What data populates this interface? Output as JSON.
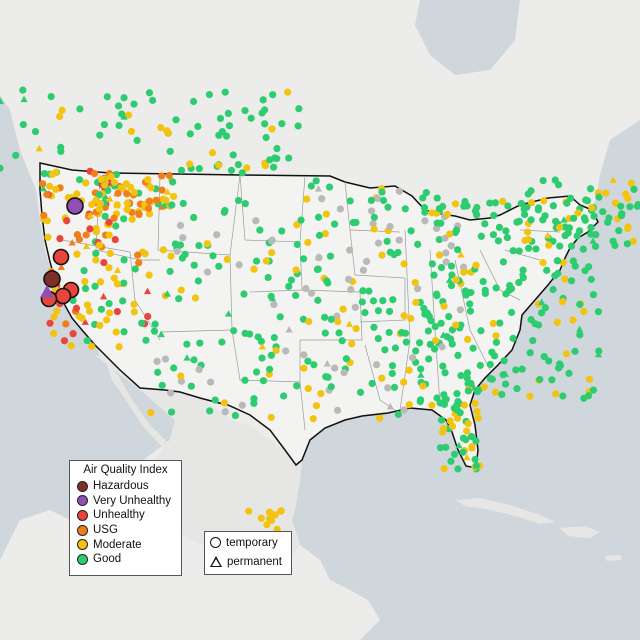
{
  "legend_aqi": {
    "title": "Air Quality Index",
    "categories": [
      {
        "label": "Hazardous",
        "color": "#7e2f2a"
      },
      {
        "label": "Very Unhealthy",
        "color": "#8f4fb3"
      },
      {
        "label": "Unhealthy",
        "color": "#e8453c"
      },
      {
        "label": "USG",
        "color": "#ef7f1a"
      },
      {
        "label": "Moderate",
        "color": "#f2c30f"
      },
      {
        "label": "Good",
        "color": "#2ecc71"
      }
    ]
  },
  "legend_type": {
    "temporary_label": "temporary",
    "permanent_label": "permanent"
  },
  "colors": {
    "ocean": "#cfd6dc",
    "land": "#ededeb",
    "us_land": "#f2f2f0",
    "border": "#111111",
    "state_lines": "#9a9a9a",
    "unknown_sensor": "#b9b9b9"
  }
}
